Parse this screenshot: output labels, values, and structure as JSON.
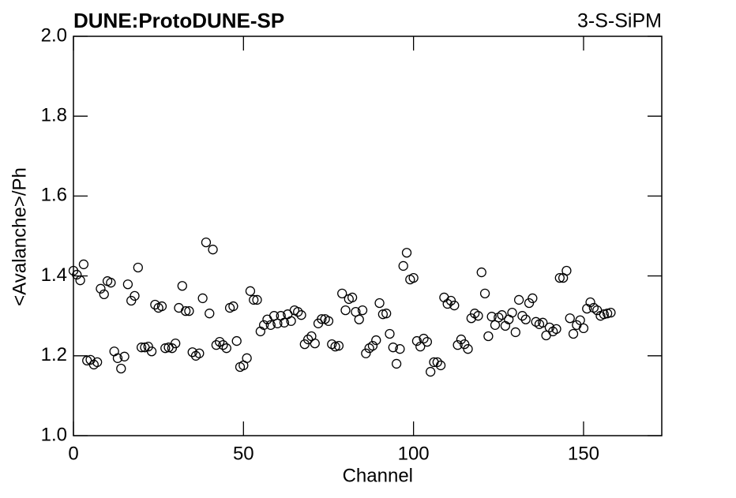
{
  "chart_data": {
    "type": "scatter",
    "title": "DUNE:ProtoDUNE-SP",
    "subtitle": "3-S-SiPM",
    "x_label": "Channel",
    "y_label": "<Avalanche>/Ph",
    "xlim": [
      0,
      173
    ],
    "ylim": [
      1,
      2
    ],
    "xticks": [
      0,
      50,
      100,
      150
    ],
    "yticks": [
      {
        "value": 1,
        "label": "1.0"
      },
      1.2,
      1.4,
      1.6,
      1.8,
      {
        "value": 2,
        "label": "2.0"
      }
    ],
    "grid": false,
    "series": [
      {
        "color": "#000000",
        "x": [
          0,
          1,
          2,
          3,
          4,
          5,
          6,
          7,
          8,
          9,
          10,
          11,
          12,
          13,
          14,
          15,
          16,
          17,
          18,
          19,
          20,
          21,
          22,
          23,
          24,
          25,
          26,
          27,
          28,
          29,
          30,
          31,
          32,
          33,
          34,
          35,
          36,
          37,
          38,
          39,
          40,
          41,
          42,
          43,
          44,
          45,
          46,
          47,
          48,
          49,
          50,
          51,
          52,
          53,
          54,
          55,
          56,
          57,
          58,
          59,
          60,
          61,
          62,
          63,
          64,
          65,
          66,
          67,
          68,
          69,
          70,
          71,
          72,
          73,
          74,
          75,
          76,
          77,
          78,
          79,
          80,
          81,
          82,
          83,
          84,
          85,
          86,
          87,
          88,
          89,
          90,
          91,
          92,
          93,
          94,
          95,
          96,
          97,
          98,
          99,
          100,
          101,
          102,
          103,
          104,
          105,
          106,
          107,
          108,
          109,
          110,
          111,
          112,
          113,
          114,
          115,
          116,
          117,
          118,
          119,
          120,
          121,
          122,
          123,
          124,
          125,
          126,
          127,
          128,
          129,
          130,
          131,
          132,
          133,
          134,
          135,
          136,
          137,
          138,
          139,
          140,
          141,
          142,
          143,
          144,
          145,
          146,
          147,
          148,
          149,
          150,
          151,
          152,
          153,
          154,
          155,
          156,
          157,
          158
        ],
        "values": [
          1.413,
          1.403,
          1.389,
          1.429,
          1.188,
          1.19,
          1.178,
          1.184,
          1.368,
          1.354,
          1.387,
          1.383,
          1.211,
          1.194,
          1.168,
          1.198,
          1.379,
          1.338,
          1.35,
          1.421,
          1.221,
          1.221,
          1.223,
          1.211,
          1.328,
          1.32,
          1.324,
          1.219,
          1.221,
          1.219,
          1.231,
          1.32,
          1.375,
          1.312,
          1.312,
          1.209,
          1.2,
          1.206,
          1.344,
          1.484,
          1.306,
          1.466,
          1.227,
          1.235,
          1.227,
          1.219,
          1.32,
          1.324,
          1.237,
          1.172,
          1.176,
          1.194,
          1.362,
          1.34,
          1.34,
          1.261,
          1.277,
          1.291,
          1.277,
          1.3,
          1.281,
          1.3,
          1.283,
          1.304,
          1.287,
          1.314,
          1.31,
          1.302,
          1.229,
          1.241,
          1.249,
          1.231,
          1.281,
          1.292,
          1.292,
          1.287,
          1.229,
          1.223,
          1.225,
          1.356,
          1.314,
          1.342,
          1.346,
          1.31,
          1.291,
          1.314,
          1.206,
          1.219,
          1.225,
          1.239,
          1.332,
          1.304,
          1.306,
          1.255,
          1.221,
          1.18,
          1.217,
          1.425,
          1.458,
          1.391,
          1.395,
          1.237,
          1.223,
          1.243,
          1.235,
          1.16,
          1.184,
          1.184,
          1.176,
          1.346,
          1.33,
          1.338,
          1.326,
          1.227,
          1.241,
          1.229,
          1.217,
          1.294,
          1.306,
          1.3,
          1.409,
          1.356,
          1.249,
          1.298,
          1.277,
          1.296,
          1.302,
          1.275,
          1.291,
          1.308,
          1.259,
          1.34,
          1.3,
          1.291,
          1.332,
          1.344,
          1.285,
          1.279,
          1.283,
          1.251,
          1.271,
          1.261,
          1.267,
          1.395,
          1.395,
          1.413,
          1.294,
          1.255,
          1.277,
          1.289,
          1.269,
          1.318,
          1.334,
          1.32,
          1.314,
          1.3,
          1.304,
          1.306,
          1.308
        ]
      }
    ]
  }
}
